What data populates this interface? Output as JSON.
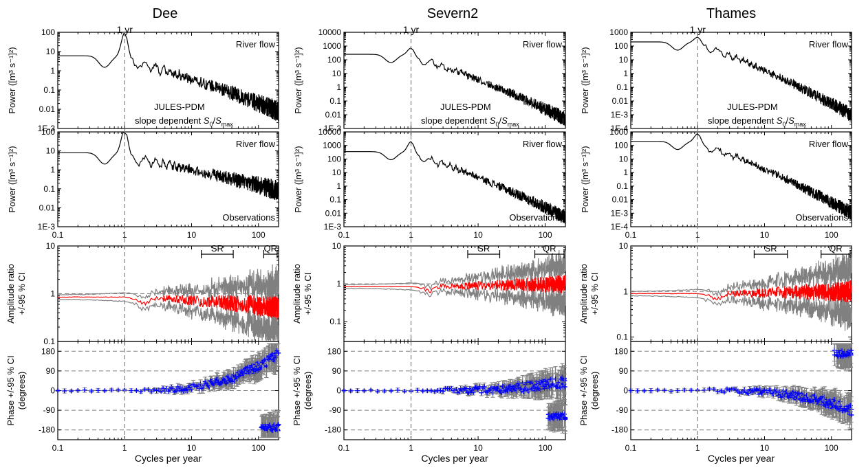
{
  "figure": {
    "one_yr_label": "1 yr",
    "x_axis_label": "Cycles per year",
    "y_labels": {
      "power": "Power ([m³ s⁻¹]²)",
      "amp_line1": "Amplitude ratio",
      "amp_line2": "+/-95 % CI",
      "phase_line1": "Phase +/-95 % CI",
      "phase_line2": "(degrees)"
    },
    "annotations": {
      "river_flow": "River flow",
      "observations": "Observations",
      "model_line1": "JULES-PDM",
      "model_line2_prefix": "slope dependent ",
      "model_S": "S",
      "model_sub0": "0",
      "model_slash": "/",
      "model_submax": "max",
      "sr": "SR",
      "qr": "QR"
    },
    "colors": {
      "flow_line": "#000000",
      "ci_line": "#808080",
      "ratio_line": "#ff0000",
      "phase_point": "#0000ff",
      "guide": "#808080"
    }
  },
  "chart_data": [
    {
      "type": "line",
      "title": "Dee",
      "x_scale": "log",
      "xlim": [
        0.1,
        200
      ],
      "x_ticks": [
        "0.1",
        "1",
        "10",
        "100"
      ],
      "panels": {
        "model_power": {
          "ylim": [
            0.001,
            100
          ],
          "y_ticks": [
            "100",
            "10",
            "1",
            "0.1",
            "0.01",
            "1E-3"
          ],
          "peak_1yr": 60,
          "low_freq_level": 6,
          "high_freq_level": 0.008
        },
        "obs_power": {
          "ylim": [
            0.001,
            100
          ],
          "y_ticks": [
            "100",
            "10",
            "1",
            "0.1",
            "0.01",
            "1E-3"
          ],
          "peak_1yr": 90,
          "low_freq_level": 8,
          "high_freq_level": 0.08
        },
        "amplitude_ratio": {
          "ylim": [
            0.1,
            10
          ],
          "y_ticks": [
            "10",
            "1",
            "0.1"
          ],
          "low_freq_ratio": 0.85,
          "high_freq_ratio": 0.5,
          "sr_range": [
            14,
            42
          ],
          "qr_range": [
            120,
            200
          ]
        },
        "phase": {
          "ylim": [
            -225,
            225
          ],
          "y_ticks": [
            "180",
            "90",
            "0",
            "-90",
            "-180"
          ],
          "low_freq_phase": 0,
          "high_freq_phase": 170,
          "wrapped_phase": -170
        }
      }
    },
    {
      "type": "line",
      "title": "Severn2",
      "x_scale": "log",
      "xlim": [
        0.1,
        200
      ],
      "x_ticks": [
        "0.1",
        "1",
        "10",
        "100"
      ],
      "panels": {
        "model_power": {
          "ylim": [
            0.001,
            10000
          ],
          "y_ticks": [
            "10000",
            "1000",
            "100",
            "10",
            "1",
            "0.1",
            "0.01",
            "1E-3"
          ],
          "peak_1yr": 450,
          "low_freq_level": 250,
          "high_freq_level": 0.005
        },
        "obs_power": {
          "ylim": [
            0.001,
            10000
          ],
          "y_ticks": [
            "10000",
            "1000",
            "100",
            "10",
            "1",
            "0.1",
            "0.01",
            "1E-3"
          ],
          "peak_1yr": 1200,
          "low_freq_level": 350,
          "high_freq_level": 0.005
        },
        "amplitude_ratio": {
          "ylim": [
            0.03,
            10
          ],
          "y_ticks": [
            "10",
            "1",
            "0.1"
          ],
          "low_freq_ratio": 0.85,
          "high_freq_ratio": 1.0,
          "sr_range": [
            7,
            21
          ],
          "qr_range": [
            70,
            200
          ]
        },
        "phase": {
          "ylim": [
            -225,
            225
          ],
          "y_ticks": [
            "180",
            "90",
            "0",
            "-90",
            "-180"
          ],
          "low_freq_phase": 0,
          "high_freq_phase": 40,
          "wrapped_phase": -120
        }
      }
    },
    {
      "type": "line",
      "title": "Thames",
      "x_scale": "log",
      "xlim": [
        0.1,
        200
      ],
      "x_ticks": [
        "0.1",
        "1",
        "10",
        "100"
      ],
      "panels": {
        "model_power": {
          "ylim": [
            0.0001,
            1000
          ],
          "y_ticks": [
            "1000",
            "100",
            "10",
            "1",
            "0.1",
            "0.01",
            "1E-3",
            "1E-4"
          ],
          "peak_1yr": 280,
          "low_freq_level": 200,
          "high_freq_level": 0.001
        },
        "obs_power": {
          "ylim": [
            0.0001,
            1000
          ],
          "y_ticks": [
            "1000",
            "100",
            "10",
            "1",
            "0.1",
            "0.01",
            "1E-3",
            "1E-4"
          ],
          "peak_1yr": 450,
          "low_freq_level": 200,
          "high_freq_level": 0.001
        },
        "amplitude_ratio": {
          "ylim": [
            0.08,
            10
          ],
          "y_ticks": [
            "10",
            "1",
            "0.1"
          ],
          "low_freq_ratio": 0.9,
          "high_freq_ratio": 1.0,
          "sr_range": [
            7,
            22
          ],
          "qr_range": [
            70,
            200
          ]
        },
        "phase": {
          "ylim": [
            -225,
            225
          ],
          "y_ticks": [
            "180",
            "90",
            "0",
            "-90",
            "-180"
          ],
          "low_freq_phase": 0,
          "high_freq_phase": -90,
          "wrapped_phase": 170
        }
      }
    }
  ]
}
